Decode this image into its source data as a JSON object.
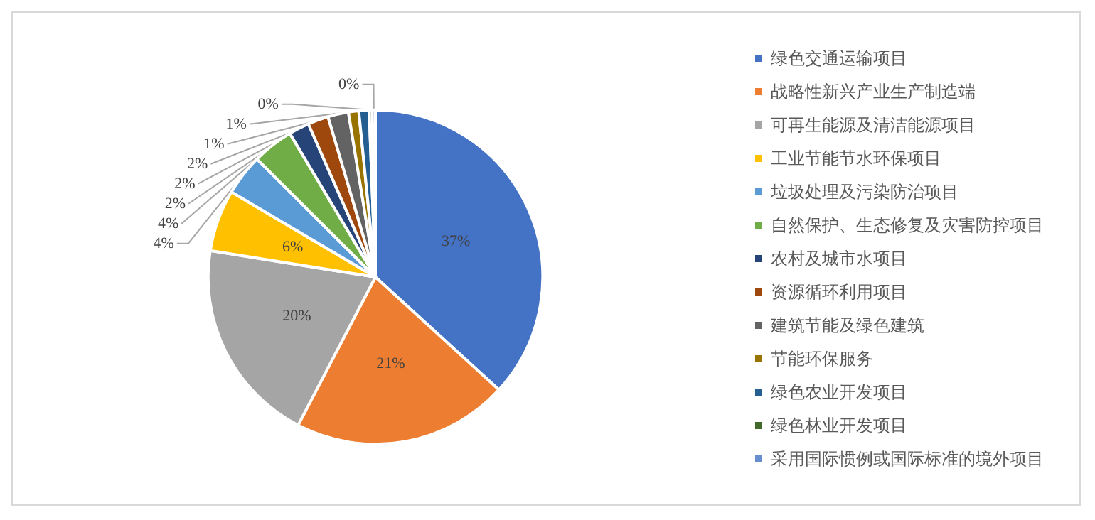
{
  "chart_data": {
    "type": "pie",
    "categories": [
      "绿色交通运输项目",
      "战略性新兴产业生产制造端",
      "可再生能源及清洁能源项目",
      "工业节能节水环保项目",
      "垃圾处理及污染防治项目",
      "自然保护、生态修复及灾害防控项目",
      "农村及城市水项目",
      "资源循环利用项目",
      "建筑节能及绿色建筑",
      "节能环保服务",
      "绿色农业开发项目",
      "绿色林业开发项目",
      "采用国际惯例或国际标准的境外项目"
    ],
    "values": [
      37,
      21,
      20,
      6,
      4,
      4,
      2,
      2,
      2,
      1,
      1,
      0.3,
      0.3
    ],
    "value_labels": [
      "37%",
      "21%",
      "20%",
      "6%",
      "4%",
      "4%",
      "2%",
      "2%",
      "2%",
      "1%",
      "1%",
      "0%",
      "0%"
    ],
    "colors": [
      "#4472c4",
      "#ed7d31",
      "#a5a5a5",
      "#ffc000",
      "#5b9bd5",
      "#70ad47",
      "#264478",
      "#9e480e",
      "#636363",
      "#997300",
      "#255e91",
      "#43682b",
      "#698ed0"
    ],
    "legend": "right"
  }
}
